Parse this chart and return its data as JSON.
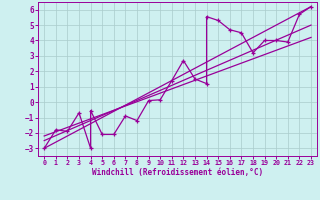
{
  "title": "",
  "xlabel": "Windchill (Refroidissement éolien,°C)",
  "bg_color": "#cef0f0",
  "grid_color": "#aacccc",
  "line_color": "#990099",
  "xlim": [
    -0.5,
    23.5
  ],
  "ylim": [
    -3.5,
    6.5
  ],
  "xticks": [
    0,
    1,
    2,
    3,
    4,
    5,
    6,
    7,
    8,
    9,
    10,
    11,
    12,
    13,
    14,
    15,
    16,
    17,
    18,
    19,
    20,
    21,
    22,
    23
  ],
  "yticks": [
    -3,
    -2,
    -1,
    0,
    1,
    2,
    3,
    4,
    5,
    6
  ],
  "zigzag_x": [
    0,
    1,
    2,
    3,
    4,
    4,
    5,
    6,
    7,
    8,
    9,
    10,
    11,
    12,
    13,
    14,
    14,
    15,
    16,
    17,
    18,
    19,
    20,
    21,
    22,
    23
  ],
  "zigzag_y": [
    -3.0,
    -1.8,
    -1.9,
    -0.7,
    -3.0,
    -0.55,
    -2.1,
    -2.1,
    -0.9,
    -1.2,
    0.1,
    0.15,
    1.4,
    2.7,
    1.5,
    1.2,
    5.55,
    5.3,
    4.7,
    4.5,
    3.2,
    4.0,
    4.0,
    3.9,
    5.7,
    6.2
  ],
  "line1_x": [
    0,
    23
  ],
  "line1_y": [
    -3.0,
    6.2
  ],
  "line2_x": [
    0,
    23
  ],
  "line2_y": [
    -2.5,
    5.0
  ],
  "line3_x": [
    0,
    23
  ],
  "line3_y": [
    -2.2,
    4.2
  ]
}
